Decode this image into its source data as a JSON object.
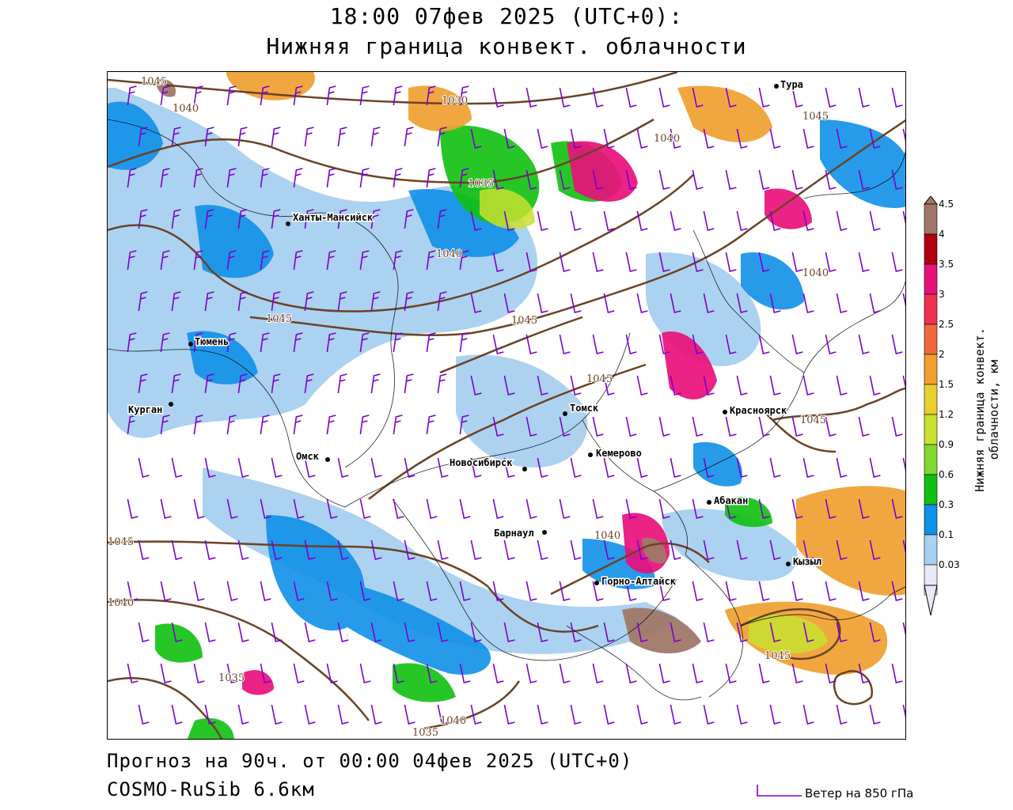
{
  "header": {
    "line1": "18:00 07фев 2025 (UTC+0):",
    "line2": "Нижняя граница конвект. облачности"
  },
  "footer": {
    "forecast": "Прогноз на 90ч. от 00:00 04фев 2025 (UTC+0)",
    "model": "COSMO-RuSib 6.6км",
    "wind_legend": "Ветер на 850 гПа"
  },
  "colorbar": {
    "title": "Нижняя граница конвект. облачности, км",
    "labels": [
      "4.5",
      "4",
      "3.5",
      "3",
      "2.5",
      "2",
      "1.5",
      "1.2",
      "0.9",
      "0.6",
      "0.3",
      "0.1",
      "0.03"
    ],
    "colors": [
      "#a07868",
      "#b00010",
      "#e8107a",
      "#f03050",
      "#f06840",
      "#f0a030",
      "#e8d030",
      "#c8e030",
      "#80d830",
      "#10c010",
      "#1090e8",
      "#a8d0f0",
      "#e8e8f8"
    ]
  },
  "cities": [
    {
      "name": "Тура"
    },
    {
      "name": "Ханты-Мансийск"
    },
    {
      "name": "Тюмень"
    },
    {
      "name": "Курган"
    },
    {
      "name": "Омск"
    },
    {
      "name": "Томск"
    },
    {
      "name": "Новосибирск"
    },
    {
      "name": "Кемерово"
    },
    {
      "name": "Красноярск"
    },
    {
      "name": "Абакан"
    },
    {
      "name": "Барнаул"
    },
    {
      "name": "Горно-Алтайск"
    },
    {
      "name": "Кызыл"
    }
  ],
  "isobars": [
    "1045",
    "1040",
    "1030",
    "1035",
    "1040",
    "1040",
    "1045",
    "1045",
    "1045",
    "1045",
    "1045",
    "1040",
    "1040",
    "1045",
    "1035",
    "1040",
    "1035",
    "1040",
    "1045"
  ],
  "colors": {
    "isobar": "#6b4226",
    "wind": "#7b00d0",
    "border": "#000000"
  }
}
